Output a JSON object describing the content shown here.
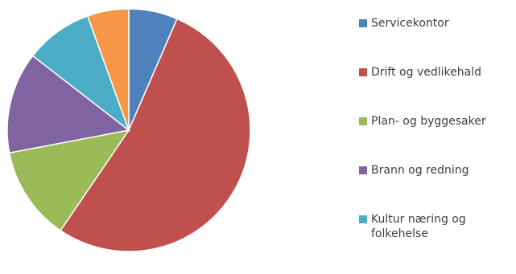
{
  "chart_data": {
    "type": "pie",
    "series": [
      {
        "name": "Servicekontor",
        "value": 6.5,
        "color": "#4f81bd"
      },
      {
        "name": "Drift og vedlikehald",
        "value": 53,
        "color": "#c0504d"
      },
      {
        "name": "Plan- og byggesaker",
        "value": 12.5,
        "color": "#9bbb59"
      },
      {
        "name": "Brann og redning",
        "value": 13.5,
        "color": "#8064a2"
      },
      {
        "name": "Kultur næring og\nfolkehelse",
        "value": 9,
        "color": "#4bacc6"
      },
      {
        "name": "",
        "value": 5.5,
        "color": "#f79646"
      }
    ],
    "legend_position": "right",
    "start_angle_deg": 0,
    "direction": "clockwise"
  }
}
